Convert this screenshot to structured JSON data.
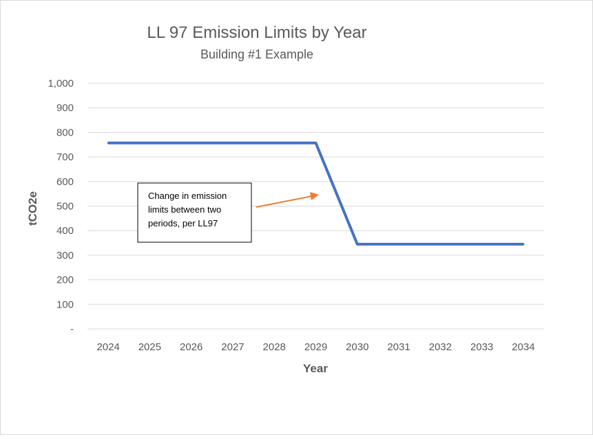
{
  "chart_data": {
    "type": "line",
    "title": "LL 97 Emission Limits by Year",
    "subtitle": "Building #1 Example",
    "xlabel": "Year",
    "ylabel": "tCO2e",
    "x": [
      "2024",
      "2025",
      "2026",
      "2027",
      "2028",
      "2029",
      "2030",
      "2031",
      "2032",
      "2033",
      "2034"
    ],
    "series": [
      {
        "values": [
          757,
          757,
          757,
          757,
          757,
          757,
          345,
          345,
          345,
          345,
          345
        ]
      }
    ],
    "ylim": [
      0,
      1000
    ],
    "yticks": [
      0,
      100,
      200,
      300,
      400,
      500,
      600,
      700,
      800,
      900,
      1000
    ],
    "ytick_labels": [
      "-",
      "100",
      "200",
      "300",
      "400",
      "500",
      "600",
      "700",
      "800",
      "900",
      "1,000"
    ],
    "grid": true,
    "legend": "none",
    "line_color": "#4472c4",
    "annotation": {
      "lines": [
        "Change in emission",
        "limits between two",
        "periods, per LL97"
      ],
      "arrow_color": "#ed7d31"
    }
  }
}
